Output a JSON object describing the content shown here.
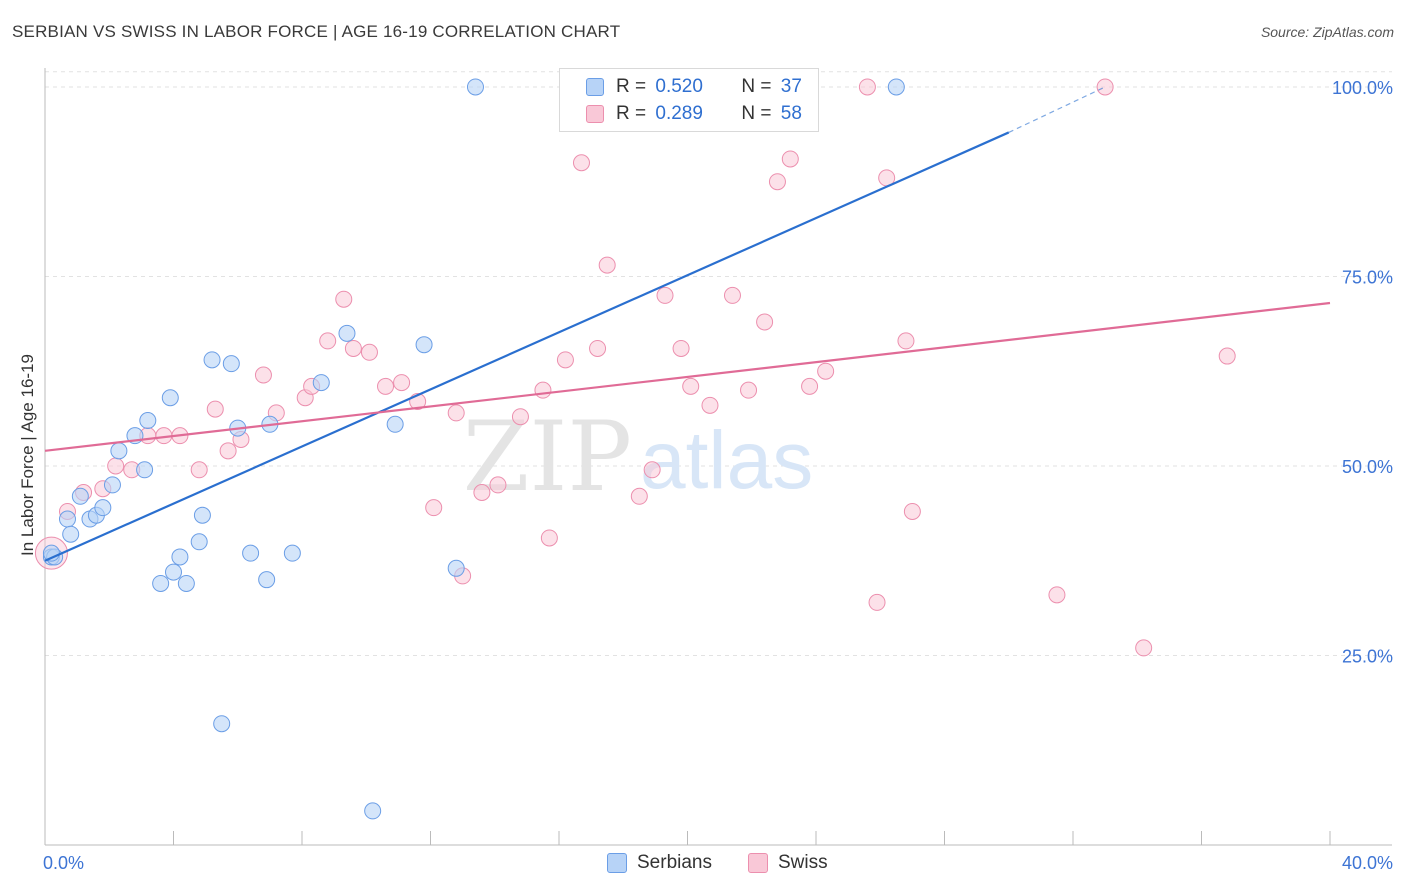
{
  "title": "SERBIAN VS SWISS IN LABOR FORCE | AGE 16-19 CORRELATION CHART",
  "source": "Source: ZipAtlas.com",
  "watermark": {
    "zip": "ZIP",
    "atlas": "atlas"
  },
  "legend": {
    "rows": [
      {
        "r_label": "R =",
        "r_value": "0.520",
        "n_label": "N =",
        "n_value": "37"
      },
      {
        "r_label": "R =",
        "r_value": "0.289",
        "n_label": "N =",
        "n_value": "58"
      }
    ]
  },
  "bottom_legend": {
    "serbians": "Serbians",
    "swiss": "Swiss"
  },
  "colors": {
    "serbians_fill": "#b7d3f7",
    "serbians_stroke": "#6b9ee6",
    "serbians_line": "#2a6fcf",
    "swiss_fill": "#f9c8d7",
    "swiss_stroke": "#ec8fae",
    "swiss_line": "#e06b96",
    "tick_label": "#3d74d4"
  },
  "chart_data": {
    "type": "scatter",
    "title": "SERBIAN VS SWISS IN LABOR FORCE | AGE 16-19 CORRELATION CHART",
    "xlabel": "",
    "ylabel": "In Labor Force | Age 16-19",
    "xlim": [
      0,
      40
    ],
    "ylim": [
      0,
      102.5
    ],
    "x_tick_labels": [
      "0.0%",
      "40.0%"
    ],
    "y_ticks": [
      25,
      50,
      75,
      100
    ],
    "y_tick_labels": [
      "25.0%",
      "50.0%",
      "75.0%",
      "100.0%"
    ],
    "series": [
      {
        "name": "Serbians",
        "r": 0.52,
        "n": 37,
        "trend": {
          "x0": 0,
          "y0": 37.5,
          "x1": 30.0,
          "y1": 94.0,
          "dash_to_x": 33.0,
          "dash_to_y": 100.0
        },
        "points": [
          [
            0.2,
            38.0
          ],
          [
            0.7,
            43.0
          ],
          [
            0.8,
            41.0
          ],
          [
            1.1,
            46.0
          ],
          [
            1.4,
            43.0
          ],
          [
            1.6,
            43.5
          ],
          [
            1.8,
            44.5
          ],
          [
            2.1,
            47.5
          ],
          [
            2.3,
            52.0
          ],
          [
            2.8,
            54.0
          ],
          [
            3.1,
            49.5
          ],
          [
            3.2,
            56.0
          ],
          [
            3.6,
            34.5
          ],
          [
            3.9,
            59.0
          ],
          [
            4.0,
            36.0
          ],
          [
            4.2,
            38.0
          ],
          [
            4.4,
            34.5
          ],
          [
            4.8,
            40.0
          ],
          [
            4.9,
            43.5
          ],
          [
            5.2,
            64.0
          ],
          [
            5.5,
            16.0
          ],
          [
            5.8,
            63.5
          ],
          [
            6.0,
            55.0
          ],
          [
            6.4,
            38.5
          ],
          [
            6.9,
            35.0
          ],
          [
            7.0,
            55.5
          ],
          [
            7.7,
            38.5
          ],
          [
            8.6,
            61.0
          ],
          [
            9.4,
            67.5
          ],
          [
            10.2,
            4.5
          ],
          [
            10.9,
            55.5
          ],
          [
            11.8,
            66.0
          ],
          [
            12.8,
            36.5
          ],
          [
            13.4,
            100.0
          ],
          [
            26.5,
            100.0
          ],
          [
            0.3,
            38.0
          ],
          [
            0.2,
            38.5
          ]
        ]
      },
      {
        "name": "Swiss",
        "r": 0.289,
        "n": 58,
        "trend": {
          "x0": 0,
          "y0": 52.0,
          "x1": 40,
          "y1": 71.5
        },
        "points": [
          [
            0.2,
            38.5
          ],
          [
            0.7,
            44.0
          ],
          [
            1.2,
            46.5
          ],
          [
            1.8,
            47.0
          ],
          [
            2.2,
            50.0
          ],
          [
            2.7,
            49.5
          ],
          [
            3.2,
            54.0
          ],
          [
            3.7,
            54.0
          ],
          [
            4.2,
            54.0
          ],
          [
            4.8,
            49.5
          ],
          [
            5.3,
            57.5
          ],
          [
            5.7,
            52.0
          ],
          [
            6.1,
            53.5
          ],
          [
            6.8,
            62.0
          ],
          [
            7.2,
            57.0
          ],
          [
            8.1,
            59.0
          ],
          [
            8.3,
            60.5
          ],
          [
            8.8,
            66.5
          ],
          [
            9.3,
            72.0
          ],
          [
            9.6,
            65.5
          ],
          [
            10.1,
            65.0
          ],
          [
            10.6,
            60.5
          ],
          [
            11.1,
            61.0
          ],
          [
            11.6,
            58.5
          ],
          [
            12.1,
            44.5
          ],
          [
            12.8,
            57.0
          ],
          [
            13.0,
            35.5
          ],
          [
            13.6,
            46.5
          ],
          [
            14.1,
            47.5
          ],
          [
            14.8,
            56.5
          ],
          [
            15.5,
            60.0
          ],
          [
            15.7,
            40.5
          ],
          [
            16.2,
            64.0
          ],
          [
            16.7,
            90.0
          ],
          [
            17.2,
            65.5
          ],
          [
            17.5,
            76.5
          ],
          [
            18.5,
            46.0
          ],
          [
            18.9,
            49.5
          ],
          [
            19.3,
            72.5
          ],
          [
            19.8,
            65.5
          ],
          [
            20.1,
            60.5
          ],
          [
            20.7,
            58.0
          ],
          [
            21.4,
            72.5
          ],
          [
            21.9,
            60.0
          ],
          [
            22.4,
            69.0
          ],
          [
            22.8,
            87.5
          ],
          [
            23.2,
            90.5
          ],
          [
            23.8,
            60.5
          ],
          [
            24.3,
            62.5
          ],
          [
            25.6,
            100.0
          ],
          [
            25.9,
            32.0
          ],
          [
            26.2,
            88.0
          ],
          [
            26.8,
            66.5
          ],
          [
            27.0,
            44.0
          ],
          [
            31.5,
            33.0
          ],
          [
            33.0,
            100.0
          ],
          [
            34.2,
            26.0
          ],
          [
            36.8,
            64.5
          ]
        ]
      }
    ]
  }
}
